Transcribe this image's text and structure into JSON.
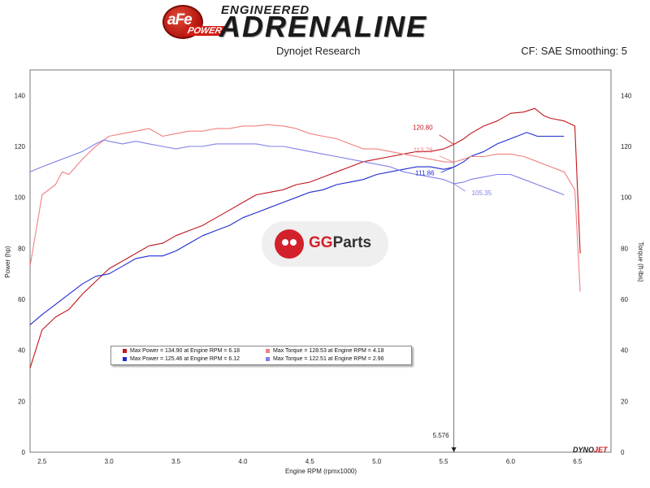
{
  "header": {
    "afe_text": "aFe",
    "power_text": "POWER",
    "brand_top": "ENGINEERED",
    "brand_main": "ADRENALINE",
    "subtitle": "Dynojet Research",
    "settings": "CF: SAE Smoothing: 5"
  },
  "watermark": {
    "gg": "GG",
    "parts": "Parts"
  },
  "dyno_logo": {
    "a": "DYNO",
    "b": "JET"
  },
  "legend": [
    {
      "text": "Max Power = 134.90 at Engine RPM = 6.18",
      "color": "#c0161c"
    },
    {
      "text": "Max Torque = 128.53 at Engine RPM = 4.18",
      "color": "#f08080"
    },
    {
      "text": "Max Power = 125.46 at Engine RPM = 6.12",
      "color": "#1f2bd0"
    },
    {
      "text": "Max Torque = 122.51 at Engine RPM = 2.96",
      "color": "#8080e6"
    }
  ],
  "chart_data": {
    "type": "line",
    "xlabel": "Engine RPM (rpmx1000)",
    "ylabel_left": "Power (hp)",
    "ylabel_right": "Torque (ft-lbs)",
    "xlim": [
      2.41,
      6.75
    ],
    "ylim": [
      0,
      150
    ],
    "xticks": [
      "2.5",
      "3.0",
      "3.5",
      "4.0",
      "4.5",
      "5.0",
      "5.5",
      "6.0",
      "6.5"
    ],
    "yticks": [
      "0",
      "20",
      "40",
      "60",
      "80",
      "100",
      "120",
      "140"
    ],
    "grid": true,
    "cursor": {
      "x": 5.576,
      "label": "5.576"
    },
    "annotations": [
      {
        "text": "120.80",
        "x": 5.576,
        "y": 120.8,
        "color": "#c0161c"
      },
      {
        "text": "113.78",
        "x": 5.576,
        "y": 113.78,
        "color": "#f08080"
      },
      {
        "text": "111.86",
        "x": 5.576,
        "y": 111.86,
        "color": "#1f2bd0"
      },
      {
        "text": "105.35",
        "x": 5.576,
        "y": 105.35,
        "color": "#8080e6"
      }
    ],
    "series": [
      {
        "name": "Max Power = 134.90 at Engine RPM = 6.18",
        "kind": "power",
        "color": "#c0161c",
        "x": [
          2.41,
          2.5,
          2.6,
          2.7,
          2.8,
          2.9,
          3.0,
          3.1,
          3.2,
          3.3,
          3.4,
          3.5,
          3.6,
          3.7,
          3.8,
          3.9,
          4.0,
          4.1,
          4.2,
          4.3,
          4.4,
          4.5,
          4.6,
          4.7,
          4.8,
          4.9,
          5.0,
          5.1,
          5.2,
          5.3,
          5.4,
          5.5,
          5.576,
          5.65,
          5.7,
          5.8,
          5.9,
          6.0,
          6.1,
          6.18,
          6.25,
          6.3,
          6.4,
          6.48,
          6.52
        ],
        "y": [
          33,
          48,
          53,
          56,
          62,
          67,
          72,
          75,
          78,
          81,
          82,
          85,
          87,
          89,
          92,
          95,
          98,
          101,
          102,
          103,
          105,
          106,
          108,
          110,
          112,
          114,
          115,
          116,
          117,
          118,
          118,
          119,
          120.8,
          123,
          125,
          128,
          130,
          133,
          133.5,
          134.9,
          132,
          131,
          130,
          128,
          78
        ]
      },
      {
        "name": "Max Power = 125.46 at Engine RPM = 6.12",
        "kind": "power",
        "color": "#1f2bd0",
        "x": [
          2.41,
          2.5,
          2.6,
          2.7,
          2.8,
          2.9,
          3.0,
          3.1,
          3.2,
          3.3,
          3.4,
          3.5,
          3.6,
          3.7,
          3.8,
          3.9,
          4.0,
          4.1,
          4.2,
          4.3,
          4.4,
          4.5,
          4.6,
          4.7,
          4.8,
          4.9,
          5.0,
          5.1,
          5.2,
          5.3,
          5.4,
          5.5,
          5.576,
          5.65,
          5.7,
          5.8,
          5.9,
          6.0,
          6.12,
          6.2,
          6.3,
          6.4
        ],
        "y": [
          50,
          54,
          58,
          62,
          66,
          69,
          70,
          73,
          76,
          77,
          77,
          79,
          82,
          85,
          87,
          89,
          92,
          94,
          96,
          98,
          100,
          102,
          103,
          105,
          106,
          107,
          109,
          110,
          111,
          112,
          112,
          111,
          111.86,
          114,
          116,
          118,
          121,
          123,
          125.46,
          124,
          124,
          124
        ]
      },
      {
        "name": "Max Torque = 128.53 at Engine RPM = 4.18",
        "kind": "torque",
        "color": "#f08080",
        "x": [
          2.41,
          2.5,
          2.6,
          2.65,
          2.7,
          2.8,
          2.9,
          3.0,
          3.1,
          3.2,
          3.3,
          3.4,
          3.5,
          3.6,
          3.7,
          3.8,
          3.9,
          4.0,
          4.1,
          4.18,
          4.3,
          4.4,
          4.5,
          4.6,
          4.7,
          4.8,
          4.9,
          5.0,
          5.1,
          5.2,
          5.3,
          5.4,
          5.5,
          5.576,
          5.65,
          5.7,
          5.8,
          5.9,
          6.0,
          6.1,
          6.2,
          6.3,
          6.4,
          6.48,
          6.52
        ],
        "y": [
          73,
          101,
          105,
          110,
          109,
          115,
          120,
          124,
          125,
          126,
          127,
          124,
          125,
          126,
          126,
          127,
          127,
          128,
          128,
          128.53,
          128,
          127,
          125,
          124,
          123,
          121,
          119,
          119,
          118,
          117,
          116,
          115,
          114,
          113.78,
          115,
          116,
          116,
          117,
          117,
          116,
          114,
          112,
          110,
          103,
          63
        ]
      },
      {
        "name": "Max Torque = 122.51 at Engine RPM = 2.96",
        "kind": "torque",
        "color": "#8080e6",
        "x": [
          2.41,
          2.5,
          2.6,
          2.7,
          2.8,
          2.9,
          2.96,
          3.0,
          3.1,
          3.2,
          3.3,
          3.4,
          3.5,
          3.6,
          3.7,
          3.8,
          3.9,
          4.0,
          4.1,
          4.2,
          4.3,
          4.4,
          4.5,
          4.6,
          4.7,
          4.8,
          4.9,
          5.0,
          5.1,
          5.2,
          5.3,
          5.4,
          5.5,
          5.576,
          5.65,
          5.7,
          5.8,
          5.9,
          6.0,
          6.1,
          6.2,
          6.3,
          6.4
        ],
        "y": [
          110,
          112,
          114,
          116,
          118,
          121,
          122.51,
          122,
          121,
          122,
          121,
          120,
          119,
          120,
          120,
          121,
          121,
          121,
          121,
          120,
          120,
          119,
          118,
          117,
          116,
          115,
          114,
          113,
          112,
          110,
          109,
          108,
          107,
          105.35,
          106,
          107,
          108,
          109,
          109,
          107,
          105,
          103,
          101
        ]
      }
    ]
  }
}
